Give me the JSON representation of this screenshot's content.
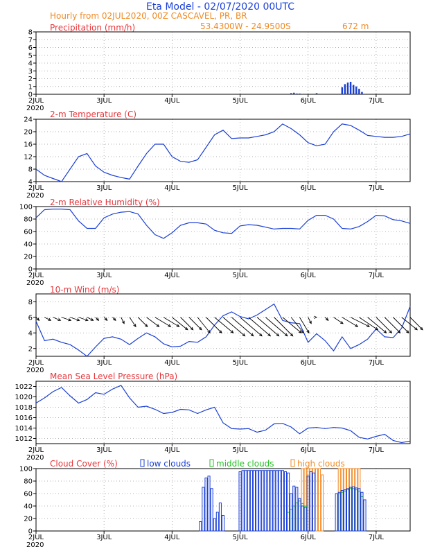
{
  "header": {
    "title": "Eta Model - 02/07/2020 00UTC",
    "subtitle": "Hourly from 02JUL2020, 00Z  CASCAVEL, PR, BR",
    "coords": "53.4300W - 24.9500S",
    "elevation": "672  m"
  },
  "colors": {
    "title": "#1a3fd6",
    "subtitle": "#f08a24",
    "panel_title": "#e8353a",
    "line": "#1a3fd6",
    "precip_bar": "#1a3fd6",
    "wind_arrow": "#000000",
    "low_cloud": "#1a3fd6",
    "middle_cloud": "#22c222",
    "high_cloud": "#f08a24"
  },
  "x_axis": {
    "tick_labels": [
      "2JUL",
      "3JUL",
      "4JUL",
      "5JUL",
      "6JUL",
      "7JUL"
    ],
    "year_label": "2020",
    "hours_range": [
      0,
      132
    ]
  },
  "chart_data": [
    {
      "id": "precip",
      "type": "bar",
      "title": "Precipitation (mm/h)",
      "ylim": [
        0,
        8
      ],
      "yticks": [
        0,
        1,
        2,
        3,
        4,
        5,
        6,
        7,
        8
      ],
      "hours": [
        90,
        91,
        92,
        93,
        99,
        108,
        109,
        110,
        111,
        112,
        113,
        114,
        115
      ],
      "values": [
        0.15,
        0.2,
        0.1,
        0.1,
        0.15,
        0.9,
        1.3,
        1.5,
        1.6,
        1.2,
        1.0,
        0.7,
        0.3
      ]
    },
    {
      "id": "temp",
      "type": "line",
      "title": "2-m Temperature (C)",
      "ylim": [
        4,
        24
      ],
      "yticks": [
        4,
        8,
        12,
        16,
        20,
        24
      ],
      "x": [
        0,
        3,
        6,
        9,
        12,
        15,
        18,
        21,
        24,
        27,
        30,
        33,
        36,
        39,
        42,
        45,
        48,
        51,
        54,
        57,
        60,
        63,
        66,
        69,
        72,
        75,
        78,
        81,
        84,
        87,
        90,
        93,
        96,
        99,
        102,
        105,
        108,
        111,
        114,
        117,
        120,
        123,
        126,
        129,
        132
      ],
      "y": [
        8,
        6,
        5,
        4,
        8,
        12,
        13,
        9,
        7,
        6,
        5.3,
        4.8,
        9,
        13,
        16,
        16,
        12,
        10.5,
        10.2,
        11,
        15,
        19,
        20.5,
        17.8,
        18,
        18,
        18.5,
        19,
        20,
        22.5,
        21,
        19,
        16.5,
        15.5,
        16,
        20,
        22.5,
        22,
        20.5,
        18.8,
        18.5,
        18.2,
        18.2,
        18.5,
        19.3
      ]
    },
    {
      "id": "rh",
      "type": "line",
      "title": "2-m Relative Humidity (%)",
      "ylim": [
        0,
        100
      ],
      "yticks": [
        0,
        20,
        40,
        60,
        80,
        100
      ],
      "x": [
        0,
        3,
        6,
        9,
        12,
        15,
        18,
        21,
        24,
        27,
        30,
        33,
        36,
        39,
        42,
        45,
        48,
        51,
        54,
        57,
        60,
        63,
        66,
        69,
        72,
        75,
        78,
        81,
        84,
        87,
        90,
        93,
        96,
        99,
        102,
        105,
        108,
        111,
        114,
        117,
        120,
        123,
        126,
        129,
        132
      ],
      "y": [
        82,
        95,
        96,
        96,
        95,
        77,
        65,
        65,
        82,
        88,
        91,
        92,
        88,
        70,
        55,
        49,
        58,
        70,
        74,
        74,
        72,
        62,
        58,
        57,
        69,
        71,
        70,
        67,
        64,
        65,
        65,
        64,
        78,
        86,
        86,
        80,
        65,
        64,
        68,
        76,
        86,
        85,
        79,
        77,
        73
      ]
    },
    {
      "id": "wind",
      "type": "line",
      "title": "10-m Wind (m/s)",
      "ylim": [
        1,
        9
      ],
      "yticks": [
        2,
        4,
        6,
        8
      ],
      "x": [
        0,
        3,
        6,
        9,
        12,
        15,
        18,
        21,
        24,
        27,
        30,
        33,
        36,
        39,
        42,
        45,
        48,
        51,
        54,
        57,
        60,
        63,
        66,
        69,
        72,
        75,
        78,
        81,
        84,
        87,
        90,
        93,
        96,
        99,
        102,
        105,
        108,
        111,
        114,
        117,
        120,
        123,
        126,
        129,
        132
      ],
      "y": [
        5.5,
        3,
        3.2,
        2.8,
        2.5,
        1.8,
        1,
        2.2,
        3.3,
        3.5,
        3.2,
        2.5,
        3.3,
        4,
        3.5,
        2.6,
        2.2,
        2.3,
        2.9,
        2.8,
        3.5,
        5,
        6.2,
        6.7,
        6.1,
        5.8,
        6.3,
        7,
        7.7,
        5.6,
        5.3,
        5.2,
        2.8,
        3.9,
        3,
        1.7,
        3.5,
        2,
        2.5,
        3.2,
        4.5,
        3.5,
        3.4,
        4.6,
        7.4
      ],
      "barbs_u": [
        0.5,
        1.0,
        1.2,
        1.5,
        1.5,
        1.5,
        1.0,
        0.5,
        0.5,
        0.5,
        0.5,
        1.0,
        1.5,
        2.0,
        2.5,
        2.5,
        2.5,
        2.0,
        2.0,
        2.0,
        2.5,
        3.0,
        3.5,
        3.5,
        3.5,
        3.5,
        3.5,
        3.5,
        3.0,
        3.0,
        2.0,
        1.5,
        0.5,
        0.0,
        0.5,
        1.5,
        2.5,
        3.0,
        3.0,
        3.0,
        2.5,
        2.5,
        2.5,
        2.5,
        2.0
      ],
      "barbs_v": [
        -0.5,
        -0.5,
        -0.5,
        -0.5,
        -0.5,
        -0.5,
        -0.5,
        -0.5,
        -0.5,
        -0.5,
        -1.0,
        -1.5,
        -1.5,
        -1.5,
        -1.5,
        -1.5,
        -2.0,
        -2.0,
        -2.0,
        -2.5,
        -2.5,
        -2.5,
        -3.0,
        -3.0,
        -3.0,
        -3.0,
        -3.0,
        -3.0,
        -3.0,
        -2.5,
        -2.5,
        -2.5,
        -1.0,
        0.0,
        -0.5,
        -1.0,
        -1.5,
        -1.5,
        -2.0,
        -2.5,
        -2.5,
        -2.5,
        -2.5,
        -2.0,
        -2.0
      ]
    },
    {
      "id": "mslp",
      "type": "line",
      "title": "Mean Sea Level Pressure (hPa)",
      "ylim": [
        1011,
        1023
      ],
      "yticks": [
        1012,
        1014,
        1016,
        1018,
        1020,
        1022
      ],
      "x": [
        0,
        3,
        6,
        9,
        12,
        15,
        18,
        21,
        24,
        27,
        30,
        33,
        36,
        39,
        42,
        45,
        48,
        51,
        54,
        57,
        60,
        63,
        66,
        69,
        72,
        75,
        78,
        81,
        84,
        87,
        90,
        93,
        96,
        99,
        102,
        105,
        108,
        111,
        114,
        117,
        120,
        123,
        126,
        129,
        132
      ],
      "y": [
        1018.8,
        1019.8,
        1021,
        1021.8,
        1020.2,
        1018.8,
        1019.5,
        1020.8,
        1020.5,
        1021.5,
        1022.2,
        1019.8,
        1018,
        1018.2,
        1017.6,
        1016.8,
        1017,
        1017.6,
        1017.5,
        1016.8,
        1017.5,
        1018,
        1015,
        1013.9,
        1013.8,
        1013.9,
        1013.2,
        1013.6,
        1014.8,
        1014.9,
        1014.2,
        1012.9,
        1014,
        1014.1,
        1013.9,
        1014.1,
        1014,
        1013.5,
        1012.2,
        1011.9,
        1012.4,
        1012.8,
        1011.6,
        1011.2,
        1011.5
      ]
    },
    {
      "id": "cloud",
      "type": "bar",
      "title": "Cloud Cover (%)",
      "legend": [
        "low clouds",
        "middle clouds",
        "high clouds"
      ],
      "ylim": [
        0,
        100
      ],
      "yticks": [
        0,
        20,
        40,
        60,
        80,
        100
      ],
      "low": {
        "hours": [
          58,
          59,
          60,
          61,
          62,
          63,
          64,
          65,
          66,
          72,
          73,
          74,
          75,
          76,
          77,
          78,
          79,
          80,
          81,
          82,
          83,
          84,
          85,
          86,
          87,
          88,
          89,
          90,
          91,
          92,
          93,
          94,
          95,
          96,
          97,
          98,
          106,
          107,
          108,
          109,
          110,
          111,
          112,
          113,
          114,
          115,
          116
        ],
        "values": [
          15,
          70,
          85,
          88,
          68,
          20,
          30,
          45,
          25,
          95,
          97,
          97,
          97,
          97,
          97,
          97,
          97,
          97,
          97,
          97,
          97,
          97,
          97,
          97,
          97,
          95,
          93,
          60,
          72,
          70,
          52,
          40,
          38,
          88,
          95,
          93,
          60,
          62,
          65,
          66,
          68,
          70,
          71,
          69,
          68,
          62,
          50
        ]
      },
      "middle": {
        "hours": [
          89,
          90,
          91,
          92,
          93,
          94,
          95,
          107,
          108,
          109,
          110,
          111,
          112,
          113,
          114,
          115
        ],
        "values": [
          30,
          35,
          40,
          45,
          48,
          44,
          40,
          60,
          62,
          64,
          66,
          68,
          68,
          66,
          64,
          55
        ]
      },
      "high": {
        "hours": [
          94,
          95,
          96,
          97,
          98,
          99,
          100,
          101,
          107,
          108,
          109,
          110,
          111,
          112,
          113,
          114
        ],
        "values": [
          100,
          100,
          100,
          100,
          100,
          100,
          100,
          90,
          100,
          100,
          100,
          100,
          100,
          100,
          100,
          100
        ]
      }
    }
  ]
}
